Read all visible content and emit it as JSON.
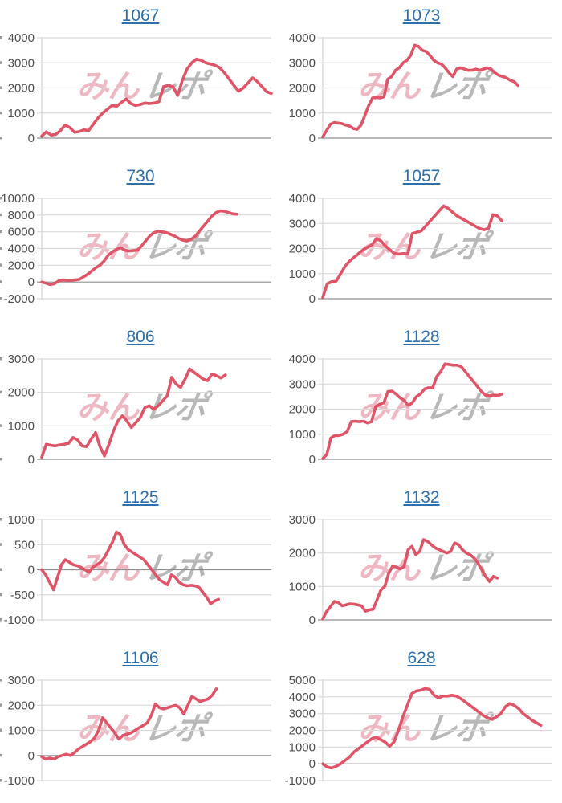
{
  "page": {
    "background": "#ffffff"
  },
  "watermark": {
    "pink": "みん",
    "gray": "レポ"
  },
  "colors": {
    "line": "#e05468",
    "title_link": "#2c70ad",
    "grid": "#d9d9d9",
    "baseline": "#8f8f8f",
    "axis_line": "#c9c9c9",
    "tick_label": "#4f4f4f",
    "edge_fragment": "#9a9a9a"
  },
  "chart_data": [
    {
      "type": "line",
      "title": "1067",
      "xlabel": "",
      "ylabel": "",
      "ylim": [
        0,
        4000
      ],
      "yticks": [
        0,
        1000,
        2000,
        3000,
        4000
      ],
      "grid": true,
      "end_frac": 1.0,
      "values": [
        80,
        250,
        120,
        150,
        300,
        520,
        420,
        230,
        260,
        330,
        300,
        550,
        800,
        1000,
        1150,
        1300,
        1270,
        1420,
        1560,
        1380,
        1300,
        1340,
        1400,
        1380,
        1400,
        1450,
        2050,
        2100,
        2050,
        1700,
        2300,
        2750,
        3000,
        3150,
        3100,
        3000,
        2950,
        2900,
        2800,
        2600,
        2350,
        2100,
        1870,
        2000,
        2200,
        2400,
        2250,
        2050,
        1850,
        1780
      ]
    },
    {
      "type": "line",
      "title": "1073",
      "xlabel": "",
      "ylabel": "",
      "ylim": [
        0,
        4000
      ],
      "yticks": [
        0,
        1000,
        2000,
        3000,
        4000
      ],
      "grid": true,
      "end_frac": 0.85,
      "values": [
        50,
        300,
        550,
        620,
        600,
        580,
        520,
        480,
        380,
        350,
        520,
        900,
        1300,
        1600,
        1620,
        1600,
        1650,
        2350,
        2450,
        2700,
        2800,
        3000,
        3100,
        3300,
        3700,
        3650,
        3500,
        3450,
        3300,
        3100,
        3000,
        2950,
        2800,
        2600,
        2450,
        2750,
        2800,
        2750,
        2700,
        2700,
        2750,
        2700,
        2750,
        2800,
        2750,
        2600,
        2500,
        2450,
        2400,
        2300,
        2250,
        2100
      ]
    },
    {
      "type": "line",
      "title": "730",
      "xlabel": "",
      "ylabel": "",
      "ylim": [
        -2000,
        10000
      ],
      "yticks": [
        -2000,
        0,
        2000,
        4000,
        6000,
        8000,
        10000
      ],
      "grid": true,
      "end_frac": 0.85,
      "values": [
        0,
        -150,
        -300,
        -200,
        100,
        250,
        200,
        200,
        250,
        300,
        600,
        900,
        1300,
        1700,
        2000,
        2500,
        3200,
        3600,
        3900,
        4100,
        3800,
        3700,
        3750,
        3800,
        4300,
        4900,
        5500,
        5900,
        6050,
        6000,
        5900,
        5700,
        5500,
        5200,
        5000,
        4900,
        5100,
        5500,
        6100,
        6700,
        7300,
        7900,
        8300,
        8500,
        8450,
        8300,
        8150,
        8100
      ]
    },
    {
      "type": "line",
      "title": "1057",
      "xlabel": "",
      "ylabel": "",
      "ylim": [
        0,
        4000
      ],
      "yticks": [
        0,
        1000,
        2000,
        3000,
        4000
      ],
      "grid": true,
      "end_frac": 0.78,
      "values": [
        50,
        600,
        680,
        700,
        1000,
        1300,
        1500,
        1650,
        1800,
        1950,
        2050,
        2150,
        2400,
        2300,
        2100,
        1950,
        1800,
        1780,
        1800,
        1780,
        2600,
        2650,
        2700,
        2900,
        3100,
        3300,
        3500,
        3700,
        3600,
        3450,
        3300,
        3200,
        3100,
        3000,
        2900,
        2800,
        2750,
        2800,
        3350,
        3300,
        3100
      ]
    },
    {
      "type": "line",
      "title": "806",
      "xlabel": "",
      "ylabel": "",
      "ylim": [
        0,
        3000
      ],
      "yticks": [
        0,
        1000,
        2000,
        3000
      ],
      "grid": true,
      "end_frac": 0.8,
      "values": [
        60,
        450,
        420,
        400,
        430,
        450,
        480,
        650,
        580,
        400,
        380,
        600,
        800,
        380,
        100,
        450,
        850,
        1150,
        1300,
        1150,
        950,
        1100,
        1250,
        1550,
        1600,
        1500,
        1600,
        1750,
        1900,
        2450,
        2250,
        2150,
        2400,
        2700,
        2600,
        2500,
        2400,
        2350,
        2550,
        2500,
        2430,
        2520
      ]
    },
    {
      "type": "line",
      "title": "1128",
      "xlabel": "",
      "ylabel": "",
      "ylim": [
        0,
        4000
      ],
      "yticks": [
        0,
        1000,
        2000,
        3000,
        4000
      ],
      "grid": true,
      "end_frac": 0.78,
      "values": [
        30,
        200,
        850,
        950,
        950,
        1000,
        1100,
        1500,
        1520,
        1500,
        1520,
        1450,
        1500,
        2100,
        2200,
        2250,
        2700,
        2720,
        2600,
        2450,
        2350,
        2150,
        2250,
        2500,
        2600,
        2800,
        2850,
        2850,
        3300,
        3500,
        3800,
        3780,
        3750,
        3750,
        3700,
        3500,
        3300,
        3100,
        2900,
        2700,
        2550,
        2530,
        2560,
        2540,
        2600
      ]
    },
    {
      "type": "line",
      "title": "1125",
      "xlabel": "",
      "ylabel": "",
      "ylim": [
        -1000,
        1000
      ],
      "yticks": [
        -1000,
        -500,
        0,
        500,
        1000
      ],
      "grid": true,
      "end_frac": 0.77,
      "values": [
        0,
        -100,
        -250,
        -400,
        -150,
        100,
        200,
        150,
        100,
        80,
        50,
        0,
        -50,
        50,
        100,
        150,
        250,
        400,
        550,
        750,
        700,
        500,
        400,
        350,
        300,
        250,
        200,
        100,
        0,
        -100,
        -200,
        -250,
        -300,
        -100,
        -150,
        -250,
        -300,
        -320,
        -310,
        -320,
        -350,
        -450,
        -550,
        -680,
        -620,
        -590
      ]
    },
    {
      "type": "line",
      "title": "1132",
      "xlabel": "",
      "ylabel": "",
      "ylim": [
        0,
        3000
      ],
      "yticks": [
        0,
        1000,
        2000,
        3000
      ],
      "grid": true,
      "end_frac": 0.76,
      "values": [
        30,
        250,
        400,
        550,
        520,
        420,
        450,
        480,
        470,
        450,
        420,
        260,
        300,
        320,
        600,
        900,
        1000,
        1400,
        1600,
        1580,
        1520,
        1600,
        2100,
        2200,
        1950,
        2050,
        2400,
        2350,
        2250,
        2150,
        2100,
        2050,
        2000,
        2050,
        2300,
        2250,
        2100,
        2000,
        1950,
        1850,
        1700,
        1500,
        1300,
        1150,
        1300,
        1250
      ]
    },
    {
      "type": "line",
      "title": "1106",
      "xlabel": "",
      "ylabel": "",
      "ylim": [
        -1000,
        3000
      ],
      "yticks": [
        -1000,
        0,
        1000,
        2000,
        3000
      ],
      "grid": true,
      "end_frac": 0.76,
      "values": [
        -50,
        -150,
        -100,
        -150,
        -50,
        0,
        50,
        0,
        100,
        250,
        350,
        450,
        550,
        700,
        1000,
        1500,
        1300,
        1100,
        900,
        650,
        800,
        850,
        900,
        1000,
        1100,
        1200,
        1300,
        1600,
        2050,
        1900,
        1850,
        1900,
        1950,
        2000,
        1900,
        1650,
        2000,
        2350,
        2250,
        2150,
        2200,
        2250,
        2400,
        2650
      ]
    },
    {
      "type": "line",
      "title": "628",
      "xlabel": "",
      "ylabel": "",
      "ylim": [
        -1000,
        5000
      ],
      "yticks": [
        -1000,
        0,
        1000,
        2000,
        3000,
        4000,
        5000
      ],
      "grid": true,
      "end_frac": 0.95,
      "values": [
        0,
        -200,
        -250,
        -150,
        0,
        200,
        400,
        700,
        900,
        1100,
        1300,
        1500,
        1600,
        1450,
        1300,
        1050,
        1300,
        2000,
        2800,
        3500,
        4200,
        4350,
        4400,
        4500,
        4450,
        4100,
        3950,
        4050,
        4050,
        4100,
        4050,
        3900,
        3700,
        3500,
        3300,
        3100,
        2900,
        2750,
        2650,
        2800,
        3000,
        3400,
        3600,
        3500,
        3300,
        3000,
        2800,
        2600,
        2450,
        2300
      ]
    }
  ]
}
